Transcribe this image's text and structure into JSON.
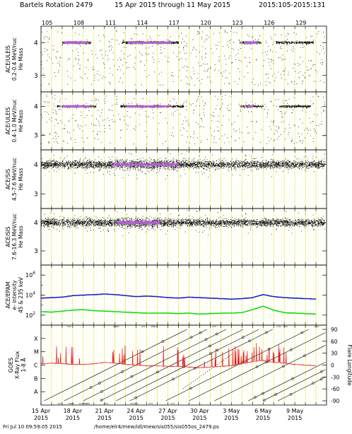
{
  "header": {
    "title": "Bartels Rotation 2479",
    "date_range": "15 Apr 2015 through 11 May 2015",
    "doy_range": "2015:105-2015:131"
  },
  "footer": {
    "timestamp": "Fri Jul 10 09:59:05 2015",
    "path": "/home/elr4/mew/idl/mew/sis055/sis055os_2479.ps"
  },
  "colors": {
    "background": "#ffffff",
    "grid": "#e6e64a",
    "points": "#000000",
    "density": "#b45fd6",
    "blue_line": "#1a24c8",
    "green_line": "#18d818",
    "xray_red": "#e41c1c"
  },
  "chart_data": {
    "type": "scatter",
    "x_axis": {
      "doy_ticks": [
        "105",
        "108",
        "111",
        "114",
        "117",
        "120",
        "123",
        "126",
        "129"
      ],
      "date_ticks": [
        {
          "day": "15 Apr",
          "year": "2015"
        },
        {
          "day": "18 Apr",
          "year": "2015"
        },
        {
          "day": "21 Apr",
          "year": "2015"
        },
        {
          "day": "24 Apr",
          "year": "2015"
        },
        {
          "day": "27 Apr",
          "year": "2015"
        },
        {
          "day": "30 Apr",
          "year": "2015"
        },
        {
          "day": "3 May",
          "year": "2015"
        },
        {
          "day": "6 May",
          "year": "2015"
        },
        {
          "day": "9 May",
          "year": "2015"
        }
      ],
      "range_doy": [
        105,
        132
      ]
    },
    "panels": [
      {
        "ylabel": [
          "ACE/ULEIS",
          "0.2-0.4 MeV/nuc",
          "He Mass"
        ],
        "yticks": [
          "4",
          "3"
        ],
        "ylim": [
          2.5,
          4.5
        ],
        "dense_bands": [
          [
            107.0,
            109.7
          ],
          [
            112.6,
            118.0
          ],
          [
            123.8,
            125.8
          ],
          [
            127.2,
            130.8
          ]
        ],
        "purple_bands": [
          [
            107.2,
            109.4
          ],
          [
            113.2,
            117.3
          ],
          [
            124.2,
            125.4
          ]
        ]
      },
      {
        "ylabel": [
          "ACE/ULEIS",
          "0.4-1.0 MeV/nuc",
          "He Mass"
        ],
        "yticks": [
          "4",
          "3"
        ],
        "ylim": [
          2.5,
          4.5
        ],
        "dense_bands": [
          [
            106.5,
            110.2
          ],
          [
            112.5,
            118.5
          ],
          [
            123.8,
            126.0
          ],
          [
            127.5,
            130.5
          ]
        ],
        "purple_bands": [
          [
            107.0,
            109.6
          ],
          [
            113.0,
            117.2
          ],
          [
            124.5,
            125.0
          ]
        ]
      },
      {
        "ylabel": [
          "ACE/SIS",
          "4.5-7.6 MeV/nuc",
          "He Mass"
        ],
        "yticks": [
          "4",
          "3"
        ],
        "ylim": [
          2.5,
          4.5
        ],
        "dense_bands": [
          [
            105.0,
            131.5
          ]
        ],
        "purple_bands": [
          [
            111.8,
            118.0
          ]
        ]
      },
      {
        "ylabel": [
          "ACE/SIS",
          "7.6-16.3 MeV/nuc",
          "He Mass"
        ],
        "yticks": [
          "4",
          "3"
        ],
        "ylim": [
          2.5,
          4.5
        ],
        "dense_bands": [
          [
            105.0,
            131.5
          ]
        ],
        "purple_bands": [
          [
            112.2,
            116.2
          ]
        ]
      },
      {
        "ylabel": [
          "ACE/EPAM",
          "e- intensity",
          "45 & 235 keV"
        ],
        "yticks": [
          "10^6",
          "10^4",
          "10^2"
        ],
        "ylim_log": [
          1,
          7
        ],
        "series": [
          {
            "name": "45 keV",
            "color": "#1a24c8",
            "values_log10": [
              3.7,
              3.75,
              3.8,
              3.95,
              4.0,
              4.05,
              4.1,
              4.05,
              3.95,
              3.85,
              3.9,
              3.85,
              3.75,
              3.7,
              3.8,
              3.75,
              3.7,
              3.65,
              3.6,
              3.65,
              3.75,
              4.05,
              3.85,
              3.75,
              3.7,
              3.65,
              3.6
            ]
          },
          {
            "name": "235 keV",
            "color": "#18d818",
            "values_log10": [
              2.35,
              2.3,
              2.4,
              2.5,
              2.55,
              2.45,
              2.4,
              2.35,
              2.3,
              2.25,
              2.2,
              2.2,
              2.2,
              2.15,
              2.2,
              2.1,
              2.15,
              2.2,
              2.2,
              2.25,
              2.55,
              2.9,
              2.5,
              2.25,
              2.2,
              2.15,
              2.1
            ]
          }
        ]
      },
      {
        "ylabel": [
          "GOES",
          "X-Ray Flux",
          "1-8 Å"
        ],
        "class_ticks": [
          "X",
          "M",
          "C",
          "B",
          "A"
        ],
        "right_label": "Flare Longitude",
        "right_ticks": [
          "90",
          "60",
          "30",
          "0",
          "-30",
          "-60",
          "-90"
        ],
        "xray_baseline_log10": [
          -5.9,
          -5.85,
          -5.9,
          -5.95,
          -5.95,
          -5.9,
          -5.8,
          -5.85,
          -5.95,
          -6.0,
          -6.05,
          -6.05,
          -6.1,
          -6.1,
          -6.15,
          -6.2,
          -6.15,
          -6.1,
          -6.05,
          -5.9,
          -5.75,
          -5.65,
          -5.8,
          -5.85,
          -5.95,
          -6.0,
          -6.05
        ]
      }
    ]
  }
}
